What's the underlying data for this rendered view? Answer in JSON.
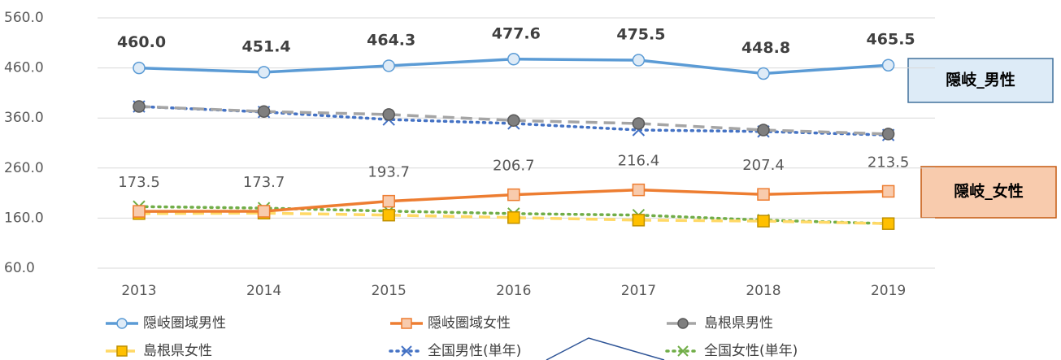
{
  "chart_data": {
    "type": "line",
    "categories": [
      "2013",
      "2014",
      "2015",
      "2016",
      "2017",
      "2018",
      "2019"
    ],
    "ylim": [
      60,
      560
    ],
    "yticks": [
      {
        "value": 60,
        "label": "60.0"
      },
      {
        "value": 160,
        "label": "160.0"
      },
      {
        "value": 260,
        "label": "260.0"
      },
      {
        "value": 360,
        "label": "360.0"
      },
      {
        "value": 460,
        "label": "460.0"
      },
      {
        "value": 560,
        "label": "560.0"
      }
    ],
    "grid": true,
    "legend": "bottom",
    "series": [
      {
        "name": "隠岐圏域男性",
        "color": "#5b9bd5",
        "dash": "solid",
        "marker": "circle",
        "marker_fill": "#deebf7",
        "values": [
          460.0,
          451.4,
          464.3,
          477.6,
          475.5,
          448.8,
          465.5
        ],
        "value_labels": [
          "460.0",
          "451.4",
          "464.3",
          "477.6",
          "475.5",
          "448.8",
          "465.5"
        ]
      },
      {
        "name": "隠岐圏域女性",
        "color": "#ed7d31",
        "dash": "solid",
        "marker": "square",
        "marker_fill": "#f8cbad",
        "values": [
          173.5,
          173.7,
          193.7,
          206.7,
          216.4,
          207.4,
          213.5
        ]
      },
      {
        "name": "島根県男性",
        "color": "#a5a5a5",
        "dash": "dashed",
        "marker": "circle",
        "marker_fill": "#7f7f7f",
        "values": [
          383,
          373,
          367,
          355,
          349,
          336,
          328
        ]
      },
      {
        "name": "島根県女性",
        "color": "#ffd966",
        "dash": "dashed",
        "marker": "square",
        "marker_fill": "#ffc000",
        "values": [
          169,
          170,
          166,
          161,
          156,
          154,
          149
        ]
      },
      {
        "name": "全国男性(単年)",
        "color": "#4472c4",
        "dash": "dotted",
        "marker": "x",
        "marker_fill": "#4472c4",
        "values": [
          383,
          372,
          357,
          349,
          336,
          333,
          326
        ]
      },
      {
        "name": "全国女性(単年)",
        "color": "#70ad47",
        "dash": "dotted",
        "marker": "x",
        "marker_fill": "#70ad47",
        "values": [
          183,
          180,
          174,
          169,
          166,
          156,
          149
        ]
      }
    ],
    "annotations": [
      "隠岐_男性",
      "隠岐_女性"
    ]
  }
}
